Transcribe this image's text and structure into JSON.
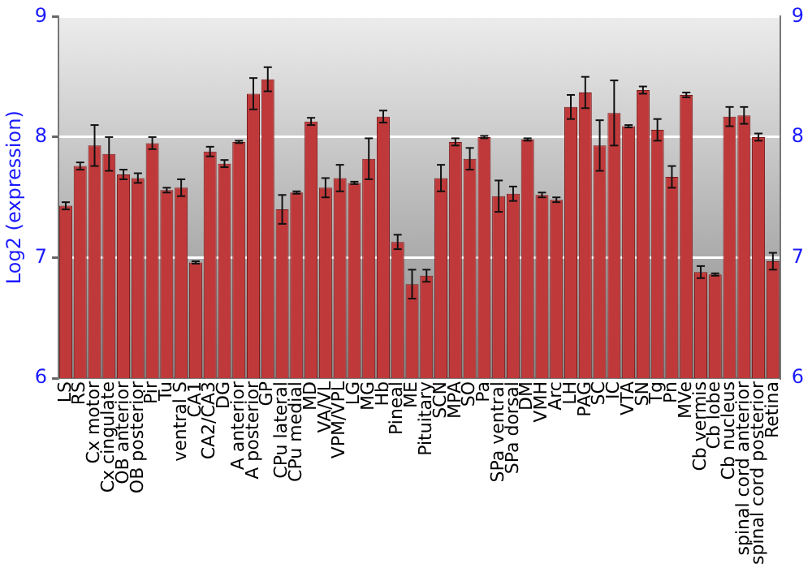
{
  "chart_data": {
    "type": "bar",
    "ylabel": "Log2 (expression)",
    "categories": [
      "LS",
      "RS",
      "Cx motor",
      "Cx cingulate",
      "OB anterior",
      "OB posterior",
      "Pir",
      "Tu",
      "ventral S",
      "CA1",
      "CA2/CA3",
      "DG",
      "A anterior",
      "A posterior",
      "GP",
      "CPu lateral",
      "CPu medial",
      "MD",
      "VA/VL",
      "VPM/VPL",
      "LG",
      "MG",
      "Hb",
      "Pineal",
      "ME",
      "Pituitary",
      "SCN",
      "MPA",
      "SO",
      "Pa",
      "SPa ventral",
      "SPa dorsal",
      "DM",
      "VMH",
      "Arc",
      "LH",
      "PAG",
      "SC",
      "IC",
      "VTA",
      "SN",
      "Tg",
      "Pn",
      "MVe",
      "Cb vermis",
      "Cb lobe",
      "Cb nucleus",
      "spinal cord anterior",
      "spinal cord posterior",
      "Retina"
    ],
    "values": [
      7.43,
      7.76,
      7.93,
      7.86,
      7.69,
      7.66,
      7.95,
      7.56,
      7.58,
      6.96,
      7.88,
      7.78,
      7.96,
      8.36,
      8.48,
      7.4,
      7.54,
      8.13,
      7.58,
      7.66,
      7.62,
      7.82,
      8.17,
      7.13,
      6.78,
      6.85,
      7.66,
      7.96,
      7.82,
      8.0,
      7.51,
      7.53,
      7.98,
      7.52,
      7.48,
      8.25,
      8.37,
      7.93,
      8.2,
      8.09,
      8.39,
      8.06,
      7.67,
      8.35,
      6.88,
      6.86,
      8.17,
      8.18,
      8.0,
      6.97
    ],
    "errors": [
      0.03,
      0.03,
      0.17,
      0.14,
      0.04,
      0.04,
      0.05,
      0.02,
      0.07,
      0.01,
      0.04,
      0.03,
      0.01,
      0.13,
      0.1,
      0.12,
      0.01,
      0.03,
      0.08,
      0.11,
      0.01,
      0.17,
      0.05,
      0.06,
      0.12,
      0.05,
      0.11,
      0.03,
      0.09,
      0.01,
      0.13,
      0.06,
      0.01,
      0.02,
      0.02,
      0.1,
      0.13,
      0.21,
      0.27,
      0.01,
      0.03,
      0.09,
      0.09,
      0.02,
      0.05,
      0.01,
      0.08,
      0.07,
      0.03,
      0.07
    ],
    "color": "#c0393a",
    "ylim": [
      6,
      9
    ],
    "yticks": [
      6,
      7,
      8,
      9
    ],
    "y2lim": [
      6,
      9
    ],
    "y2ticks": [
      6,
      7,
      8,
      9
    ],
    "grid": "y",
    "legend": false
  }
}
